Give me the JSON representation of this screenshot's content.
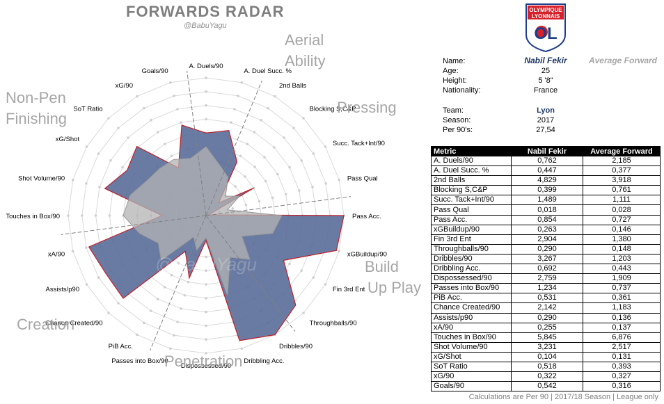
{
  "header": {
    "title": "FORWARDS RADAR",
    "handle": "@BabuYagu"
  },
  "watermark": "@BabuYagu",
  "groups": [
    {
      "key": "aerial",
      "lines": [
        "Aerial",
        "Ability"
      ]
    },
    {
      "key": "pressing",
      "lines": [
        "Pressing"
      ]
    },
    {
      "key": "buildup",
      "lines": [
        "Build",
        "Up Play"
      ]
    },
    {
      "key": "penetration",
      "lines": [
        "Penetration"
      ]
    },
    {
      "key": "creation",
      "lines": [
        "Creation"
      ]
    },
    {
      "key": "finishing",
      "lines": [
        "Non-Pen",
        "Finishing"
      ]
    }
  ],
  "logo": {
    "top_text_1": "OLYMPIQUE",
    "top_text_2": "LYONNAIS",
    "monogram": "OL",
    "colors": {
      "blue": "#1d3e8a",
      "red": "#d6202a",
      "white": "#ffffff"
    }
  },
  "player_info": {
    "labels": {
      "name": "Name:",
      "age": "Age:",
      "height": "Height:",
      "nationality": "Nationality:",
      "team": "Team:",
      "season": "Season:",
      "per90": "Per 90's:"
    },
    "player_name": "Nabil Fekir",
    "comparison_name": "Average Forward",
    "age": "25",
    "height": "5 '8\"",
    "nationality": "France",
    "team": "Lyon",
    "season": "2017",
    "per90": "27,54"
  },
  "table": {
    "headers": [
      "Metric",
      "Nabil Fekir",
      "Average Forward"
    ],
    "rows": [
      [
        "A. Duels/90",
        "0,762",
        "2,185"
      ],
      [
        "A. Duel Succ. %",
        "0,447",
        "0,377"
      ],
      [
        "2nd Balls",
        "4,829",
        "3,918"
      ],
      [
        "Blocking S,C&P",
        "0,399",
        "0,761"
      ],
      [
        "Succ. Tack+Int/90",
        "1,489",
        "1,111"
      ],
      [
        "Pass Qual",
        "0,018",
        "0,028"
      ],
      [
        "Pass Acc.",
        "0,854",
        "0,727"
      ],
      [
        "xGBuildup/90",
        "0,263",
        "0,146"
      ],
      [
        "Fin 3rd Ent",
        "2,904",
        "1,380"
      ],
      [
        "Throughballs/90",
        "0,290",
        "0,148"
      ],
      [
        "Dribbles/90",
        "3,267",
        "1,203"
      ],
      [
        "Dribbling Acc.",
        "0,692",
        "0,443"
      ],
      [
        "Dispossessed/90",
        "2,759",
        "1,909"
      ],
      [
        "Passes into Box/90",
        "1,234",
        "0,737"
      ],
      [
        "PiB Acc.",
        "0,531",
        "0,361"
      ],
      [
        "Chance Created/90",
        "2,142",
        "1,183"
      ],
      [
        "Assists/p90",
        "0,290",
        "0,136"
      ],
      [
        "xA/90",
        "0,255",
        "0,137"
      ],
      [
        "Touches in Box/90",
        "5,845",
        "6,876"
      ],
      [
        "Shot Volume/90",
        "3,231",
        "2,517"
      ],
      [
        "xG/Shot",
        "0,104",
        "0,131"
      ],
      [
        "SoT Ratio",
        "0,518",
        "0,393"
      ],
      [
        "xG/90",
        "0,322",
        "0,327"
      ],
      [
        "Goals/90",
        "0,542",
        "0,316"
      ]
    ]
  },
  "footer": "Calculations are Per 90 | 2017/18 Season | League only",
  "chart_data": {
    "type": "radar",
    "title": "FORWARDS RADAR",
    "axes": [
      "A. Duels/90",
      "A. Duel Succ. %",
      "2nd Balls",
      "Blocking S,C&P",
      "Succ. Tack+Int/90",
      "Pass Qual",
      "Pass Acc.",
      "xGBuildup/90",
      "Fin 3rd Ent",
      "Throughballs/90",
      "Dribbles/90",
      "Dribbling Acc.",
      "Dispossessed/90",
      "Passes into Box/90",
      "PiB Acc.",
      "Chance Created/90",
      "Assists/p90",
      "xA/90",
      "Touches in Box/90",
      "Shot Volume/90",
      "xG/Shot",
      "SoT Ratio",
      "xG/90",
      "Goals/90"
    ],
    "rings": 10,
    "scale_max": 10,
    "series": [
      {
        "name": "Nabil Fekir",
        "color": "#5a6d99",
        "edge": "#c0202a",
        "values": [
          6.0,
          6.4,
          4.5,
          1.3,
          4.0,
          0.2,
          10.0,
          9.8,
          6.5,
          9.2,
          10.0,
          9.4,
          1.8,
          4.7,
          3.0,
          8.5,
          8.4,
          8.8,
          3.2,
          7.6,
          6.6,
          7.1,
          4.0,
          6.8
        ]
      },
      {
        "name": "Average Forward",
        "color": "#b3b3b3",
        "edge": "#999999",
        "values": [
          5.0,
          3.8,
          3.2,
          2.0,
          2.8,
          1.6,
          5.5,
          5.0,
          3.0,
          4.5,
          3.5,
          6.0,
          1.6,
          2.6,
          1.8,
          4.6,
          4.0,
          5.0,
          6.0,
          5.7,
          5.0,
          4.8,
          4.7,
          4.3
        ]
      }
    ],
    "group_dividers_after_axis": [
      1,
      5,
      9,
      13,
      17,
      23
    ]
  }
}
